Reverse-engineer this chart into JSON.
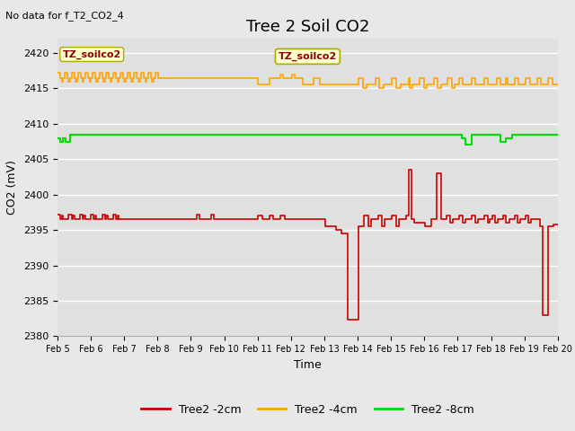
{
  "title": "Tree 2 Soil CO2",
  "no_data_text": "No data for f_T2_CO2_4",
  "ylabel": "CO2 (mV)",
  "xlabel": "Time",
  "ylim": [
    2380,
    2422
  ],
  "yticks": [
    2380,
    2385,
    2390,
    2395,
    2400,
    2405,
    2410,
    2415,
    2420
  ],
  "xtick_labels": [
    "Feb 5",
    "Feb 6",
    "Feb 7",
    "Feb 8",
    "Feb 9",
    "Feb 10",
    "Feb 11",
    "Feb 12",
    "Feb 13",
    "Feb 14",
    "Feb 15",
    "Feb 16",
    "Feb 17",
    "Feb 18",
    "Feb 19",
    "Feb 20"
  ],
  "legend_labels": [
    "Tree2 -2cm",
    "Tree2 -4cm",
    "Tree2 -8cm"
  ],
  "legend_colors": [
    "#ff0000",
    "#ffa500",
    "#00cc00"
  ],
  "annotation_text": "TZ_soilco2",
  "background_color": "#e8e8e8",
  "plot_bg_color": "#e0e0e0",
  "grid_color": "#ffffff",
  "title_fontsize": 13,
  "axis_fontsize": 9,
  "tick_fontsize": 8,
  "red_line_color": "#cc0000",
  "orange_line_color": "#ffa500",
  "green_line_color": "#00dd00",
  "n_days": 15,
  "n_points": 360
}
